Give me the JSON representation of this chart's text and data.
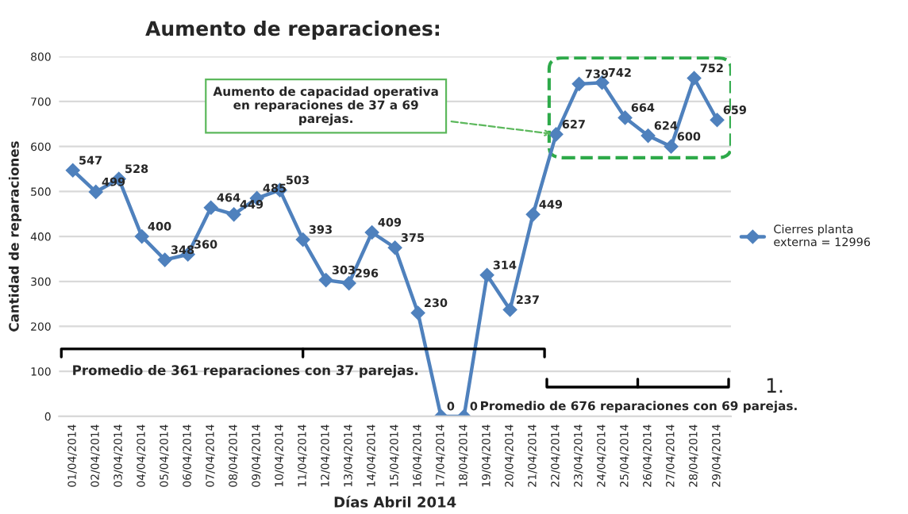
{
  "chart_data": {
    "type": "line",
    "title": "Aumento de reparaciones:",
    "xlabel": "Días Abril 2014",
    "ylabel": "Cantidad de reparaciones",
    "categories": [
      "01/04/2014",
      "02/04/2014",
      "03/04/2014",
      "04/04/2014",
      "05/04/2014",
      "06/04/2014",
      "07/04/2014",
      "08/04/2014",
      "09/04/2014",
      "10/04/2014",
      "11/04/2014",
      "12/04/2014",
      "13/04/2014",
      "14/04/2014",
      "15/04/2014",
      "16/04/2014",
      "17/04/2014",
      "18/04/2014",
      "19/04/2014",
      "20/04/2014",
      "21/04/2014",
      "22/04/2014",
      "23/04/2014",
      "24/04/2014",
      "25/04/2014",
      "26/04/2014",
      "27/04/2014",
      "28/04/2014",
      "29/04/2014"
    ],
    "series": [
      {
        "name": "Cierres planta externa = 12996",
        "color": "#4f81bd",
        "values": [
          547,
          499,
          528,
          400,
          348,
          360,
          464,
          449,
          485,
          503,
          393,
          303,
          296,
          409,
          375,
          230,
          0,
          0,
          314,
          237,
          449,
          627,
          739,
          742,
          664,
          624,
          600,
          752,
          659
        ]
      }
    ],
    "ylim": [
      0,
      800
    ],
    "yticks": [
      0,
      100,
      200,
      300,
      400,
      500,
      600,
      700,
      800
    ],
    "grid": "y",
    "legend": "right",
    "marker": "diamond",
    "line_style": "solid",
    "data_labels": true,
    "annotations": [
      {
        "text": "Aumento de capacidad operativa en reparaciones de 37 a 69 parejas.",
        "x": "22/04/2014",
        "y": 627
      },
      "Promedio de 361 reparaciones con 37 parejas.",
      "Promedio de 676 reparaciones con 69 parejas.",
      "1."
    ]
  }
}
